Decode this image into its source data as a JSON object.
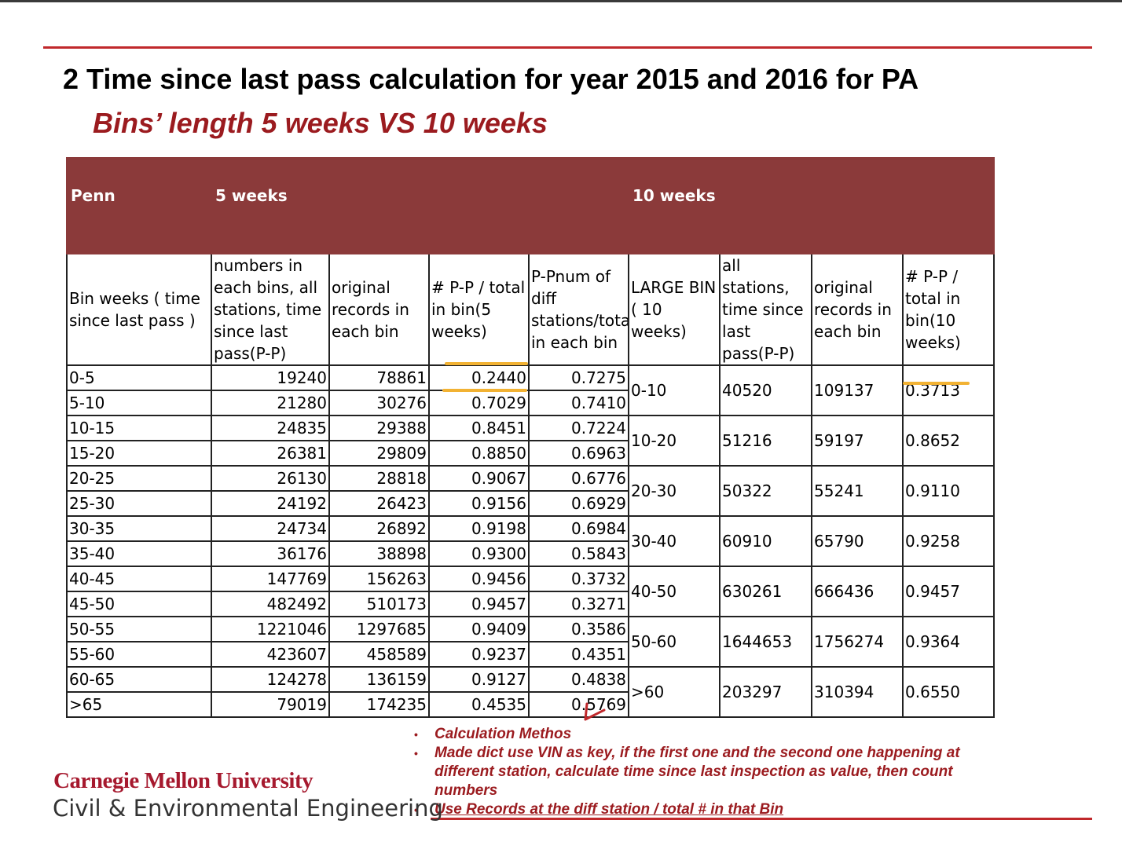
{
  "slide": {
    "title": "2 Time since last pass calculation for year 2015 and 2016 for PA",
    "subtitle": "Bins’ length 5 weeks VS 10 weeks"
  },
  "table": {
    "header": {
      "c1": "Penn",
      "c2": "5 weeks",
      "c3": "10 weeks"
    },
    "subheader": {
      "bin": "Bin weeks ( time since last pass )",
      "numbers": "numbers in each bins, all stations, time since last pass(P-P)",
      "original": "original records in each bin",
      "ratio5": "# P-P / total in bin(5 weeks)",
      "pnum": "P-Pnum of diff stations/total in each bin",
      "large": "LARGE BIN ( 10 weeks)",
      "all10": "all stations, time since last pass(P-P)",
      "orig10": "original records in each bin",
      "ratio10": "# P-P / total in bin(10 weeks)"
    },
    "rows5": [
      {
        "bin": "0-5",
        "n": "19240",
        "orig": "78861",
        "ratio": "0.2440",
        "pnum": "0.7275"
      },
      {
        "bin": "5-10",
        "n": "21280",
        "orig": "30276",
        "ratio": "0.7029",
        "pnum": "0.7410"
      },
      {
        "bin": "10-15",
        "n": "24835",
        "orig": "29388",
        "ratio": "0.8451",
        "pnum": "0.7224"
      },
      {
        "bin": "15-20",
        "n": "26381",
        "orig": "29809",
        "ratio": "0.8850",
        "pnum": "0.6963"
      },
      {
        "bin": "20-25",
        "n": "26130",
        "orig": "28818",
        "ratio": "0.9067",
        "pnum": "0.6776"
      },
      {
        "bin": "25-30",
        "n": "24192",
        "orig": "26423",
        "ratio": "0.9156",
        "pnum": "0.6929"
      },
      {
        "bin": "30-35",
        "n": "24734",
        "orig": "26892",
        "ratio": "0.9198",
        "pnum": "0.6984"
      },
      {
        "bin": "35-40",
        "n": "36176",
        "orig": "38898",
        "ratio": "0.9300",
        "pnum": "0.5843"
      },
      {
        "bin": "40-45",
        "n": "147769",
        "orig": "156263",
        "ratio": "0.9456",
        "pnum": "0.3732"
      },
      {
        "bin": "45-50",
        "n": "482492",
        "orig": "510173",
        "ratio": "0.9457",
        "pnum": "0.3271"
      },
      {
        "bin": "50-55",
        "n": "1221046",
        "orig": "1297685",
        "ratio": "0.9409",
        "pnum": "0.3586"
      },
      {
        "bin": "55-60",
        "n": "423607",
        "orig": "458589",
        "ratio": "0.9237",
        "pnum": "0.4351"
      },
      {
        "bin": "60-65",
        "n": "124278",
        "orig": "136159",
        "ratio": "0.9127",
        "pnum": "0.4838"
      },
      {
        "bin": ">65",
        "n": "79019",
        "orig": "174235",
        "ratio": "0.4535",
        "pnum": "0.5769"
      }
    ],
    "rows10": [
      {
        "bin": "0-10",
        "all": "40520",
        "orig": "109137",
        "ratio": "0.3713"
      },
      {
        "bin": "10-20",
        "all": "51216",
        "orig": "59197",
        "ratio": "0.8652"
      },
      {
        "bin": "20-30",
        "all": "50322",
        "orig": "55241",
        "ratio": "0.9110"
      },
      {
        "bin": "30-40",
        "all": "60910",
        "orig": "65790",
        "ratio": "0.9258"
      },
      {
        "bin": "40-50",
        "all": "630261",
        "orig": "666436",
        "ratio": "0.9457"
      },
      {
        "bin": "50-60",
        "all": "1644653",
        "orig": "1756274",
        "ratio": "0.9364"
      },
      {
        "bin": ">60",
        "all": "203297",
        "orig": "310394",
        "ratio": "0.6550"
      }
    ]
  },
  "notes": {
    "item1": "Calculation Methos",
    "item2": "Made dict use VIN as key, if the first one and the second one happening at different station, calculate time since last inspection as value, then count numbers",
    "item3": "Use Records at the diff station / total # in that Bin"
  },
  "footer": {
    "university": "Carnegie Mellon University",
    "department": "Civil & Environmental Engineering"
  },
  "colors": {
    "header_bg": "#8b3a3a",
    "accent_red": "#9b1b1f",
    "highlight": "#f2b233"
  }
}
